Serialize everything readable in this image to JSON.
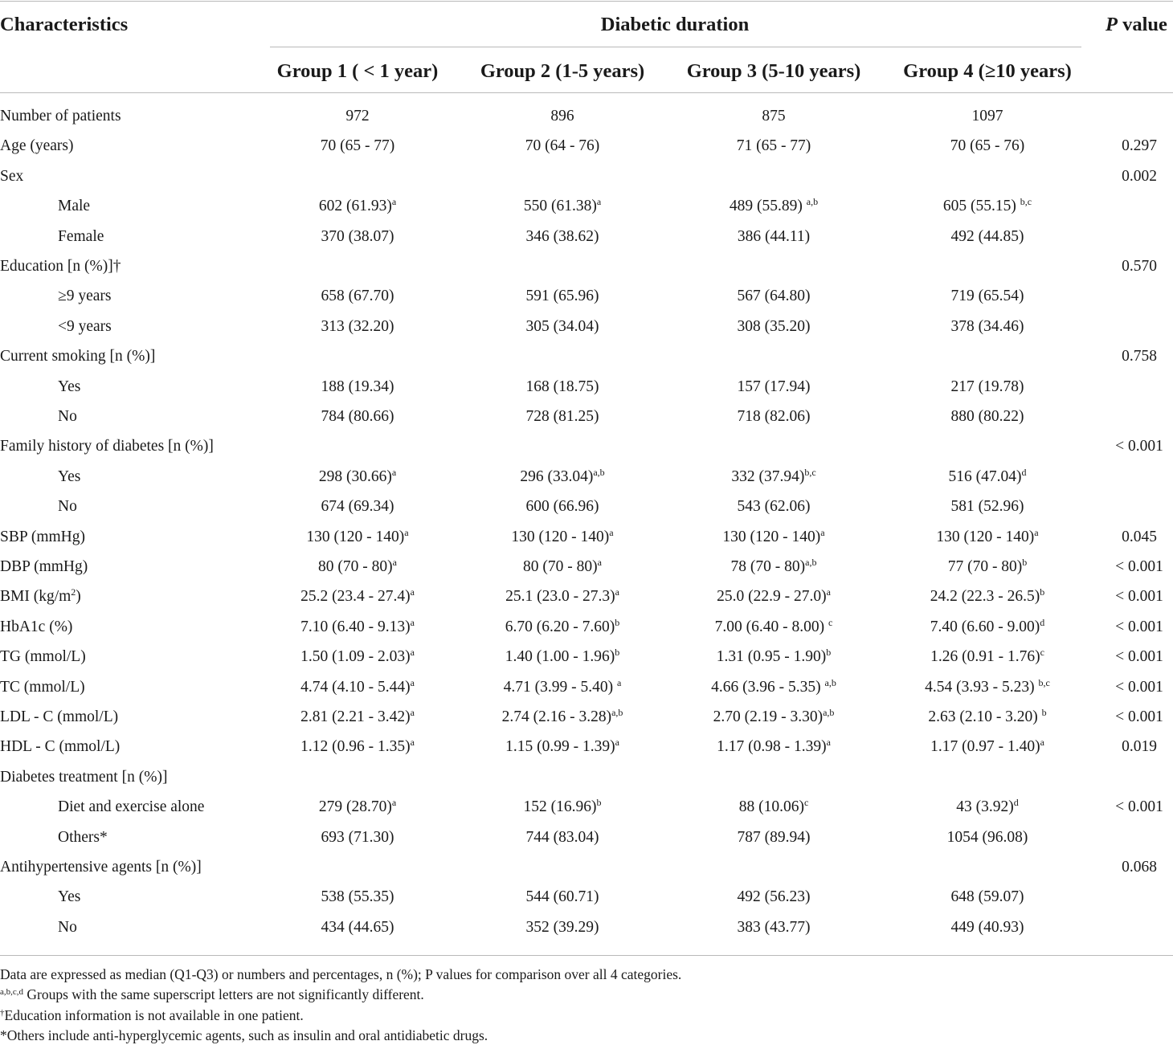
{
  "header": {
    "characteristics": "Characteristics",
    "diabetic_duration": "Diabetic duration",
    "p_value_italic": "P",
    "p_value_rest": " value",
    "groups": [
      "Group 1 ( < 1 year)",
      "Group 2 (1-5 years)",
      "Group 3 (5-10 years)",
      "Group 4 (≥10 years)"
    ]
  },
  "rows": [
    {
      "label": "Number of patients",
      "indent": false,
      "cells": [
        {
          "v": "972",
          "s": ""
        },
        {
          "v": "896",
          "s": ""
        },
        {
          "v": "875",
          "s": ""
        },
        {
          "v": "1097",
          "s": ""
        }
      ],
      "p": ""
    },
    {
      "label": "Age (years)",
      "indent": false,
      "cells": [
        {
          "v": "70 (65 - 77)",
          "s": ""
        },
        {
          "v": "70 (64 - 76)",
          "s": ""
        },
        {
          "v": "71 (65 - 77)",
          "s": ""
        },
        {
          "v": "70 (65 - 76)",
          "s": ""
        }
      ],
      "p": "0.297"
    },
    {
      "label": "Sex",
      "indent": false,
      "cells": [],
      "p": "0.002"
    },
    {
      "label": "Male",
      "indent": true,
      "cells": [
        {
          "v": "602 (61.93)",
          "s": "a"
        },
        {
          "v": "550 (61.38)",
          "s": "a"
        },
        {
          "v": "489 (55.89) ",
          "s": "a,b"
        },
        {
          "v": "605 (55.15) ",
          "s": "b,c"
        }
      ],
      "p": ""
    },
    {
      "label": "Female",
      "indent": true,
      "cells": [
        {
          "v": "370 (38.07)",
          "s": ""
        },
        {
          "v": "346 (38.62)",
          "s": ""
        },
        {
          "v": "386 (44.11)",
          "s": ""
        },
        {
          "v": "492 (44.85)",
          "s": ""
        }
      ],
      "p": ""
    },
    {
      "label": "Education [n (%)]†",
      "indent": false,
      "cells": [],
      "p": "0.570"
    },
    {
      "label": "≥9 years",
      "indent": true,
      "cells": [
        {
          "v": "658 (67.70)",
          "s": ""
        },
        {
          "v": "591 (65.96)",
          "s": ""
        },
        {
          "v": "567 (64.80)",
          "s": ""
        },
        {
          "v": "719 (65.54)",
          "s": ""
        }
      ],
      "p": ""
    },
    {
      "label": "<9 years",
      "indent": true,
      "cells": [
        {
          "v": "313 (32.20)",
          "s": ""
        },
        {
          "v": "305 (34.04)",
          "s": ""
        },
        {
          "v": "308 (35.20)",
          "s": ""
        },
        {
          "v": "378 (34.46)",
          "s": ""
        }
      ],
      "p": ""
    },
    {
      "label": "Current smoking [n (%)]",
      "indent": false,
      "cells": [],
      "p": "0.758"
    },
    {
      "label": "Yes",
      "indent": true,
      "cells": [
        {
          "v": "188 (19.34)",
          "s": ""
        },
        {
          "v": "168 (18.75)",
          "s": ""
        },
        {
          "v": "157 (17.94)",
          "s": ""
        },
        {
          "v": "217 (19.78)",
          "s": ""
        }
      ],
      "p": ""
    },
    {
      "label": "No",
      "indent": true,
      "cells": [
        {
          "v": "784 (80.66)",
          "s": ""
        },
        {
          "v": "728 (81.25)",
          "s": ""
        },
        {
          "v": "718 (82.06)",
          "s": ""
        },
        {
          "v": "880 (80.22)",
          "s": ""
        }
      ],
      "p": ""
    },
    {
      "label": "Family history of diabetes [n (%)]",
      "indent": false,
      "cells": [],
      "p": "< 0.001"
    },
    {
      "label": "Yes",
      "indent": true,
      "cells": [
        {
          "v": "298 (30.66)",
          "s": "a"
        },
        {
          "v": "296 (33.04)",
          "s": "a,b"
        },
        {
          "v": "332 (37.94)",
          "s": "b,c"
        },
        {
          "v": "516 (47.04)",
          "s": "d"
        }
      ],
      "p": ""
    },
    {
      "label": "No",
      "indent": true,
      "cells": [
        {
          "v": "674 (69.34)",
          "s": ""
        },
        {
          "v": "600 (66.96)",
          "s": ""
        },
        {
          "v": "543 (62.06)",
          "s": ""
        },
        {
          "v": "581 (52.96)",
          "s": ""
        }
      ],
      "p": ""
    },
    {
      "label": "SBP (mmHg)",
      "indent": false,
      "cells": [
        {
          "v": "130 (120 - 140)",
          "s": "a"
        },
        {
          "v": "130 (120 - 140)",
          "s": "a"
        },
        {
          "v": "130 (120 - 140)",
          "s": "a"
        },
        {
          "v": "130 (120 - 140)",
          "s": "a"
        }
      ],
      "p": "0.045"
    },
    {
      "label": "DBP (mmHg)",
      "indent": false,
      "cells": [
        {
          "v": "80 (70 - 80)",
          "s": "a"
        },
        {
          "v": "80 (70 - 80)",
          "s": "a"
        },
        {
          "v": "78 (70 - 80)",
          "s": "a,b"
        },
        {
          "v": "77 (70 - 80)",
          "s": "b"
        }
      ],
      "p": "< 0.001"
    },
    {
      "label": "BMI (kg/m",
      "label_sup": "2",
      "label_end": ")",
      "indent": false,
      "cells": [
        {
          "v": "25.2 (23.4 - 27.4)",
          "s": "a"
        },
        {
          "v": "25.1 (23.0 - 27.3)",
          "s": "a"
        },
        {
          "v": "25.0 (22.9 - 27.0)",
          "s": "a"
        },
        {
          "v": "24.2 (22.3 - 26.5)",
          "s": "b"
        }
      ],
      "p": "< 0.001"
    },
    {
      "label": "HbA1c (%)",
      "indent": false,
      "cells": [
        {
          "v": "7.10 (6.40 - 9.13)",
          "s": "a"
        },
        {
          "v": "6.70 (6.20 - 7.60)",
          "s": "b"
        },
        {
          "v": "7.00 (6.40 - 8.00) ",
          "s": "c"
        },
        {
          "v": "7.40 (6.60 - 9.00)",
          "s": "d"
        }
      ],
      "p": "< 0.001"
    },
    {
      "label": "TG (mmol/L)",
      "indent": false,
      "cells": [
        {
          "v": "1.50 (1.09 - 2.03)",
          "s": "a"
        },
        {
          "v": "1.40 (1.00 - 1.96)",
          "s": "b"
        },
        {
          "v": "1.31 (0.95 - 1.90)",
          "s": "b"
        },
        {
          "v": "1.26 (0.91 - 1.76)",
          "s": "c"
        }
      ],
      "p": "< 0.001"
    },
    {
      "label": "TC (mmol/L)",
      "indent": false,
      "cells": [
        {
          "v": "4.74 (4.10 - 5.44)",
          "s": "a"
        },
        {
          "v": "4.71 (3.99 - 5.40) ",
          "s": "a"
        },
        {
          "v": "4.66 (3.96 - 5.35) ",
          "s": "a,b"
        },
        {
          "v": "4.54 (3.93 - 5.23) ",
          "s": "b,c"
        }
      ],
      "p": "< 0.001"
    },
    {
      "label": "LDL - C (mmol/L)",
      "indent": false,
      "cells": [
        {
          "v": "2.81 (2.21 - 3.42)",
          "s": "a"
        },
        {
          "v": "2.74 (2.16 - 3.28)",
          "s": "a,b"
        },
        {
          "v": "2.70 (2.19 - 3.30)",
          "s": "a,b"
        },
        {
          "v": "2.63 (2.10 - 3.20) ",
          "s": "b"
        }
      ],
      "p": "< 0.001"
    },
    {
      "label": "HDL - C (mmol/L)",
      "indent": false,
      "cells": [
        {
          "v": "1.12 (0.96 - 1.35)",
          "s": "a"
        },
        {
          "v": "1.15 (0.99 - 1.39)",
          "s": "a"
        },
        {
          "v": "1.17 (0.98 - 1.39)",
          "s": "a"
        },
        {
          "v": "1.17 (0.97 - 1.40)",
          "s": "a"
        }
      ],
      "p": "0.019"
    },
    {
      "label": "Diabetes treatment [n (%)]",
      "indent": false,
      "cells": [],
      "p": ""
    },
    {
      "label": "Diet and exercise alone",
      "indent": true,
      "cells": [
        {
          "v": "279 (28.70)",
          "s": "a"
        },
        {
          "v": "152 (16.96)",
          "s": "b"
        },
        {
          "v": "88 (10.06)",
          "s": "c"
        },
        {
          "v": "43 (3.92)",
          "s": "d"
        }
      ],
      "p": "< 0.001"
    },
    {
      "label": "Others*",
      "indent": true,
      "cells": [
        {
          "v": "693 (71.30)",
          "s": ""
        },
        {
          "v": "744 (83.04)",
          "s": ""
        },
        {
          "v": "787 (89.94)",
          "s": ""
        },
        {
          "v": "1054 (96.08)",
          "s": ""
        }
      ],
      "p": ""
    },
    {
      "label": "Antihypertensive agents [n (%)]",
      "indent": false,
      "cells": [],
      "p": "0.068"
    },
    {
      "label": "Yes",
      "indent": true,
      "cells": [
        {
          "v": "538 (55.35)",
          "s": ""
        },
        {
          "v": "544 (60.71)",
          "s": ""
        },
        {
          "v": "492 (56.23)",
          "s": ""
        },
        {
          "v": "648 (59.07)",
          "s": ""
        }
      ],
      "p": ""
    },
    {
      "label": "No",
      "indent": true,
      "cells": [
        {
          "v": "434 (44.65)",
          "s": ""
        },
        {
          "v": "352 (39.29)",
          "s": ""
        },
        {
          "v": "383 (43.77)",
          "s": ""
        },
        {
          "v": "449 (40.93)",
          "s": ""
        }
      ],
      "p": ""
    }
  ],
  "footnotes": [
    {
      "sup": "",
      "text": "Data are expressed as median (Q1-Q3) or numbers and percentages, n (%); P values for comparison over all 4 categories."
    },
    {
      "sup": "a,b,c,d",
      "text": " Groups with the same superscript letters are not significantly different."
    },
    {
      "sup": "†",
      "text": "Education information is not available in one patient."
    },
    {
      "sup": "",
      "text": "*Others include anti-hyperglycemic agents, such as insulin and oral antidiabetic drugs."
    }
  ]
}
